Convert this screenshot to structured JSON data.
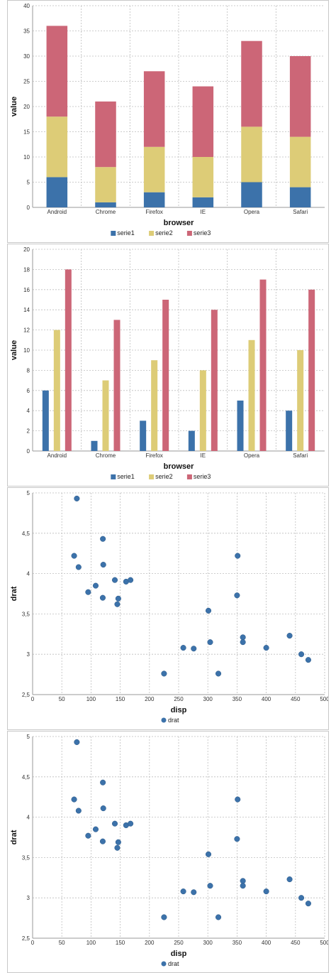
{
  "chart_data": [
    {
      "type": "bar",
      "stacked": true,
      "categories": [
        "Android",
        "Chrome",
        "Firefox",
        "IE",
        "Opera",
        "Safari"
      ],
      "series": [
        {
          "name": "serie1",
          "color": "#3c72aa",
          "values": [
            6,
            1,
            3,
            2,
            5,
            4
          ]
        },
        {
          "name": "serie2",
          "color": "#ddcc77",
          "values": [
            12,
            7,
            9,
            8,
            11,
            10
          ]
        },
        {
          "name": "serie3",
          "color": "#cc6677",
          "values": [
            18,
            13,
            15,
            14,
            17,
            16
          ]
        }
      ],
      "xlabel": "browser",
      "ylabel": "value",
      "ylim": [
        0,
        40
      ],
      "yticks": [
        0,
        5,
        10,
        15,
        20,
        25,
        30,
        35,
        40
      ],
      "grid": true,
      "legend": "bottom"
    },
    {
      "type": "bar",
      "stacked": false,
      "categories": [
        "Android",
        "Chrome",
        "Firefox",
        "IE",
        "Opera",
        "Safari"
      ],
      "series": [
        {
          "name": "serie1",
          "color": "#3c72aa",
          "values": [
            6,
            1,
            3,
            2,
            5,
            4
          ]
        },
        {
          "name": "serie2",
          "color": "#ddcc77",
          "values": [
            12,
            7,
            9,
            8,
            11,
            10
          ]
        },
        {
          "name": "serie3",
          "color": "#cc6677",
          "values": [
            18,
            13,
            15,
            14,
            17,
            16
          ]
        }
      ],
      "xlabel": "browser",
      "ylabel": "value",
      "ylim": [
        0,
        20
      ],
      "yticks": [
        0,
        2,
        4,
        6,
        8,
        10,
        12,
        14,
        16,
        18,
        20
      ],
      "grid": true,
      "legend": "bottom"
    },
    {
      "type": "scatter",
      "series": [
        {
          "name": "drat",
          "color": "#3c72aa",
          "points": [
            [
              71.1,
              4.22
            ],
            [
              75.7,
              4.93
            ],
            [
              78.7,
              4.08
            ],
            [
              95.1,
              3.77
            ],
            [
              108,
              3.85
            ],
            [
              120.1,
              3.7
            ],
            [
              120.3,
              4.43
            ],
            [
              121,
              4.11
            ],
            [
              140.8,
              3.92
            ],
            [
              145,
              3.62
            ],
            [
              146.7,
              3.69
            ],
            [
              160,
              3.9
            ],
            [
              167.6,
              3.92
            ],
            [
              225,
              2.76
            ],
            [
              258,
              3.08
            ],
            [
              275.8,
              3.07
            ],
            [
              301,
              3.54
            ],
            [
              304,
              3.15
            ],
            [
              318,
              2.76
            ],
            [
              350,
              3.73
            ],
            [
              351,
              4.22
            ],
            [
              360,
              3.21
            ],
            [
              360,
              3.15
            ],
            [
              400,
              3.08
            ],
            [
              440,
              3.23
            ],
            [
              460,
              3.0
            ],
            [
              472,
              2.93
            ]
          ]
        }
      ],
      "xlabel": "disp",
      "ylabel": "drat",
      "xlim": [
        0,
        500
      ],
      "ylim": [
        2.5,
        5
      ],
      "xticks": [
        0,
        50,
        100,
        150,
        200,
        250,
        300,
        350,
        400,
        450,
        500
      ],
      "yticks": [
        2.5,
        3,
        3.5,
        4,
        4.5,
        5
      ],
      "grid": true,
      "legend": "bottom"
    },
    {
      "type": "scatter",
      "series": [
        {
          "name": "drat",
          "color": "#3c72aa",
          "points": [
            [
              71.1,
              4.22
            ],
            [
              75.7,
              4.93
            ],
            [
              78.7,
              4.08
            ],
            [
              95.1,
              3.77
            ],
            [
              108,
              3.85
            ],
            [
              120.1,
              3.7
            ],
            [
              120.3,
              4.43
            ],
            [
              121,
              4.11
            ],
            [
              140.8,
              3.92
            ],
            [
              145,
              3.62
            ],
            [
              146.7,
              3.69
            ],
            [
              160,
              3.9
            ],
            [
              167.6,
              3.92
            ],
            [
              225,
              2.76
            ],
            [
              258,
              3.08
            ],
            [
              275.8,
              3.07
            ],
            [
              301,
              3.54
            ],
            [
              304,
              3.15
            ],
            [
              318,
              2.76
            ],
            [
              350,
              3.73
            ],
            [
              351,
              4.22
            ],
            [
              360,
              3.21
            ],
            [
              360,
              3.15
            ],
            [
              400,
              3.08
            ],
            [
              440,
              3.23
            ],
            [
              460,
              3.0
            ],
            [
              472,
              2.93
            ]
          ]
        }
      ],
      "xlabel": "disp",
      "ylabel": "drat",
      "xlim": [
        0,
        500
      ],
      "ylim": [
        2.5,
        5
      ],
      "xticks": [
        0,
        50,
        100,
        150,
        200,
        250,
        300,
        350,
        400,
        450,
        500
      ],
      "yticks": [
        2.5,
        3,
        3.5,
        4,
        4.5,
        5
      ],
      "grid": true,
      "legend": "bottom"
    }
  ]
}
